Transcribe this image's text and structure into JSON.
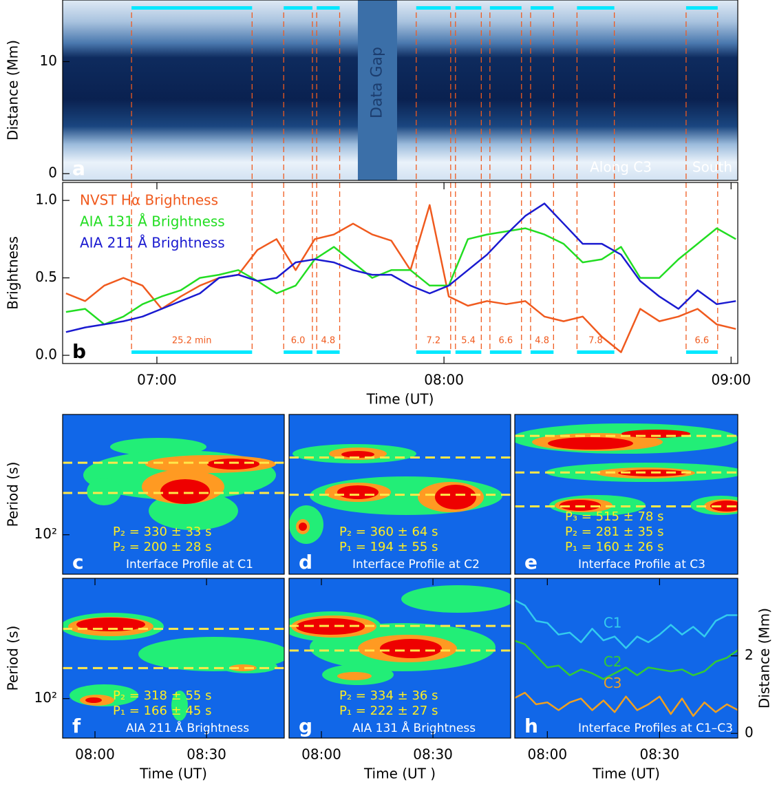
{
  "chart_data": [
    {
      "type": "image",
      "panel_label": "a",
      "ylabel": "Distance (Mm)",
      "xlim": [
        400.3,
        541.4
      ],
      "ylim": [
        -0.6,
        15.5
      ],
      "yticks": [
        0,
        10
      ],
      "gap": {
        "label": "Data Gap",
        "start": 462,
        "end": 470.2
      },
      "annotations": [
        "Along C3",
        "South"
      ]
    },
    {
      "type": "line",
      "panel_label": "b",
      "xlabel": "Time (UT)",
      "ylabel": "Brightness",
      "legend": "upper-left",
      "xlim": [
        400.3,
        541.4
      ],
      "xticks": [
        {
          "value": 420,
          "label": "07:00"
        },
        {
          "value": 480,
          "label": "08:00"
        },
        {
          "value": 540,
          "label": "09:00"
        }
      ],
      "ylim": [
        -0.053,
        1.116
      ],
      "yticks": [
        {
          "value": 0,
          "label": "0.0"
        },
        0.5,
        {
          "value": 1,
          "label": "1.0"
        }
      ],
      "x": [
        401,
        405,
        409,
        413,
        417,
        421,
        425,
        429,
        433,
        437,
        441,
        445,
        449,
        453,
        457,
        461,
        465,
        469,
        473,
        477,
        481,
        485,
        489,
        493,
        497,
        501,
        505,
        509,
        513,
        517,
        521,
        525,
        529,
        533,
        537,
        541
      ],
      "series": [
        {
          "name": "NVST Hα Brightness",
          "color": "#f05a1e",
          "values": [
            0.4,
            0.35,
            0.45,
            0.5,
            0.45,
            0.3,
            0.38,
            0.45,
            0.5,
            0.52,
            0.68,
            0.75,
            0.55,
            0.75,
            0.78,
            0.85,
            0.78,
            0.74,
            0.55,
            0.97,
            0.38,
            0.32,
            0.35,
            0.33,
            0.35,
            0.25,
            0.22,
            0.25,
            0.12,
            0.02,
            0.3,
            0.22,
            0.25,
            0.3,
            0.2,
            0.17
          ]
        },
        {
          "name": "AIA 131 Å Brightness",
          "color": "#22dd22",
          "values": [
            0.28,
            0.3,
            0.2,
            0.25,
            0.33,
            0.38,
            0.42,
            0.5,
            0.52,
            0.55,
            0.48,
            0.4,
            0.45,
            0.62,
            0.7,
            0.6,
            0.5,
            0.55,
            0.55,
            0.45,
            0.45,
            0.75,
            0.78,
            0.8,
            0.82,
            0.78,
            0.72,
            0.6,
            0.62,
            0.7,
            0.5,
            0.5,
            0.62,
            0.72,
            0.82,
            0.75
          ]
        },
        {
          "name": "AIA 211 Å Brightness",
          "color": "#1a1ad0",
          "values": [
            0.15,
            0.18,
            0.2,
            0.22,
            0.25,
            0.3,
            0.35,
            0.4,
            0.5,
            0.52,
            0.48,
            0.5,
            0.6,
            0.62,
            0.6,
            0.55,
            0.52,
            0.52,
            0.45,
            0.4,
            0.45,
            0.55,
            0.65,
            0.78,
            0.9,
            0.98,
            0.85,
            0.72,
            0.72,
            0.65,
            0.48,
            0.38,
            0.3,
            0.42,
            0.33,
            0.35
          ]
        }
      ],
      "interval_color": "#00e8ff",
      "intervals": [
        {
          "start": 414.7,
          "end": 439.9,
          "label": "25.2 min"
        },
        {
          "start": 446.5,
          "end": 452.5,
          "label": "6.0"
        },
        {
          "start": 453.4,
          "end": 458.2,
          "label": "4.8"
        },
        {
          "start": 474.2,
          "end": 481.4,
          "label": "7.2"
        },
        {
          "start": 482.4,
          "end": 487.8,
          "label": "5.4"
        },
        {
          "start": 489.6,
          "end": 496.2,
          "label": "6.6"
        },
        {
          "start": 498.1,
          "end": 502.9,
          "label": "4.8"
        },
        {
          "start": 507.8,
          "end": 515.6,
          "label": "7.8"
        },
        {
          "start": 530.6,
          "end": 537.2,
          "label": "6.6"
        }
      ]
    },
    {
      "type": "wavelet",
      "panel_label": "c",
      "ylabel": "Period (s)",
      "xlim": [
        471.3,
        530.9
      ],
      "ylim": [
        52,
        735
      ],
      "yscale": "log",
      "yticks": [
        {
          "value": 100,
          "label": "10²"
        }
      ],
      "periods": [
        330,
        200
      ],
      "annotations": [
        "P₂ = 330 ± 33 s",
        "P₂ = 200 ± 28 s"
      ],
      "caption": "Interface Profile at C1"
    },
    {
      "type": "wavelet",
      "panel_label": "d",
      "xlim": [
        471.3,
        530.9
      ],
      "ylim": [
        52,
        735
      ],
      "yscale": "log",
      "periods": [
        360,
        194
      ],
      "annotations": [
        "P₂ = 360 ± 64 s",
        "P₁ = 194 ± 55 s"
      ],
      "caption": "Interface Profile at C2"
    },
    {
      "type": "wavelet",
      "panel_label": "e",
      "xlim": [
        471.3,
        530.9
      ],
      "ylim": [
        52,
        735
      ],
      "yscale": "log",
      "periods": [
        515,
        281,
        160
      ],
      "annotations": [
        "P₃ = 515 ± 78 s",
        "P₂ = 281 ± 35 s",
        "P₁ = 160 ± 26 s"
      ],
      "caption": "Interface Profile at C3"
    },
    {
      "type": "wavelet",
      "panel_label": "f",
      "ylabel": "Period (s)",
      "xlabel": "Time (UT)",
      "xlim": [
        471.3,
        530.9
      ],
      "xticks": [
        {
          "value": 480,
          "label": "08:00"
        },
        {
          "value": 510,
          "label": "08:30"
        }
      ],
      "ylim": [
        52,
        735
      ],
      "yscale": "log",
      "yticks": [
        {
          "value": 100,
          "label": "10²"
        }
      ],
      "periods": [
        318,
        166
      ],
      "annotations": [
        "P₂ = 318 ± 55 s",
        "P₁ = 166 ± 45 s"
      ],
      "caption": "AIA 211 Å Brightness"
    },
    {
      "type": "wavelet",
      "panel_label": "g",
      "xlabel": "Time (UT )",
      "xlim": [
        471.3,
        530.9
      ],
      "xticks": [
        {
          "value": 480,
          "label": "08:00"
        },
        {
          "value": 510,
          "label": "08:30"
        }
      ],
      "ylim": [
        52,
        735
      ],
      "yscale": "log",
      "periods": [
        334,
        222
      ],
      "annotations": [
        "P₂ = 334 ± 36 s",
        "P₁ = 222 ± 27 s"
      ],
      "caption": "AIA 131 Å Brightness"
    },
    {
      "type": "line",
      "panel_label": "h",
      "xlabel": "Time (UT)",
      "ylabel": "Distance (Mm)",
      "yaxis_side": "right",
      "caption": "Interface Profiles at C1–C3",
      "xlim": [
        471.3,
        530.9
      ],
      "xticks": [
        {
          "value": 480,
          "label": "08:00"
        },
        {
          "value": 510,
          "label": "08:30"
        }
      ],
      "ylim": [
        -0.12,
        4.0
      ],
      "yticks": [
        0,
        2
      ],
      "x": [
        471,
        474,
        477,
        480,
        483,
        486,
        489,
        492,
        495,
        498,
        501,
        504,
        507,
        510,
        513,
        516,
        519,
        522,
        525,
        528,
        531
      ],
      "series": [
        {
          "name": "C1",
          "color": "#33ccee",
          "values": [
            3.45,
            3.3,
            2.9,
            2.85,
            2.55,
            2.6,
            2.35,
            2.7,
            2.4,
            2.5,
            2.2,
            2.5,
            2.35,
            2.55,
            2.8,
            2.55,
            2.75,
            2.5,
            2.9,
            3.05,
            3.05
          ]
        },
        {
          "name": "C2",
          "color": "#33cc33",
          "values": [
            2.4,
            2.3,
            2.0,
            1.7,
            1.75,
            1.5,
            1.65,
            1.55,
            1.4,
            1.55,
            1.7,
            1.5,
            1.7,
            1.65,
            1.6,
            1.65,
            1.5,
            1.6,
            1.85,
            1.95,
            2.15
          ]
        },
        {
          "name": "C3",
          "color": "#f0a020",
          "values": [
            0.9,
            1.05,
            0.75,
            0.8,
            0.6,
            0.8,
            0.9,
            0.6,
            0.85,
            0.55,
            0.95,
            0.6,
            0.75,
            0.95,
            0.5,
            0.9,
            0.45,
            0.8,
            0.55,
            0.75,
            0.6
          ]
        }
      ]
    }
  ]
}
